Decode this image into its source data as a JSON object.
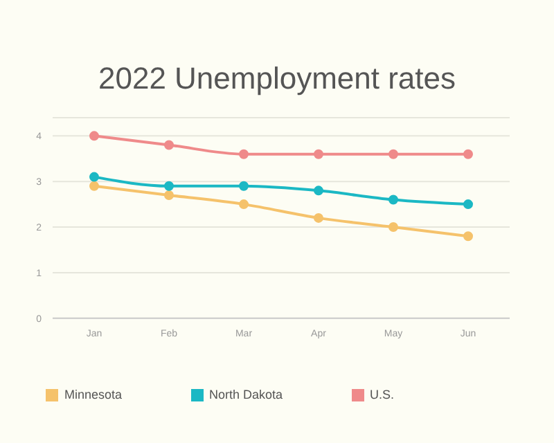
{
  "chart_data": {
    "type": "line",
    "title": "2022 Unemployment rates",
    "categories": [
      "Jan",
      "Feb",
      "Mar",
      "Apr",
      "May",
      "Jun"
    ],
    "series": [
      {
        "name": "Minnesota",
        "color": "#f5c26b",
        "values": [
          2.9,
          2.7,
          2.5,
          2.2,
          2.0,
          1.8
        ]
      },
      {
        "name": "North Dakota",
        "color": "#1bb8c4",
        "values": [
          3.1,
          2.9,
          2.9,
          2.8,
          2.6,
          2.5
        ]
      },
      {
        "name": "U.S.",
        "color": "#ef8a8a",
        "values": [
          4.0,
          3.8,
          3.6,
          3.6,
          3.6,
          3.6
        ]
      }
    ],
    "ylim": [
      0,
      4.4
    ],
    "yticks": [
      0,
      1,
      2,
      3,
      4
    ],
    "grid": "y",
    "legend": "bottom",
    "marker": "circle",
    "line_style": "solid"
  }
}
